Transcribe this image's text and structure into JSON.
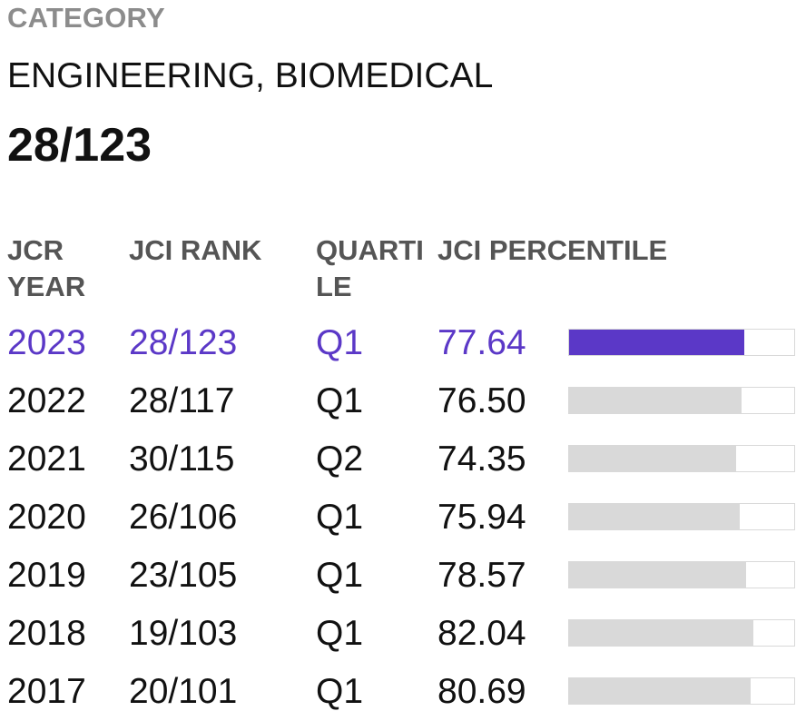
{
  "category": {
    "label": "CATEGORY",
    "name": "ENGINEERING, BIOMEDICAL",
    "rank": "28/123"
  },
  "table": {
    "headers": {
      "year": "JCR YEAR",
      "rank": "JCI RANK",
      "quartile": "QUARTILE",
      "percentile": "JCI PERCENTILE"
    },
    "rows": [
      {
        "year": "2023",
        "rank": "28/123",
        "quartile": "Q1",
        "percentile": "77.64",
        "bar_fraction": 0.7764,
        "current": true
      },
      {
        "year": "2022",
        "rank": "28/117",
        "quartile": "Q1",
        "percentile": "76.50",
        "bar_fraction": 0.765,
        "current": false
      },
      {
        "year": "2021",
        "rank": "30/115",
        "quartile": "Q2",
        "percentile": "74.35",
        "bar_fraction": 0.7435,
        "current": false
      },
      {
        "year": "2020",
        "rank": "26/106",
        "quartile": "Q1",
        "percentile": "75.94",
        "bar_fraction": 0.7594,
        "current": false
      },
      {
        "year": "2019",
        "rank": "23/105",
        "quartile": "Q1",
        "percentile": "78.57",
        "bar_fraction": 0.7857,
        "current": false
      },
      {
        "year": "2018",
        "rank": "19/103",
        "quartile": "Q1",
        "percentile": "82.04",
        "bar_fraction": 0.8204,
        "current": false
      },
      {
        "year": "2017",
        "rank": "20/101",
        "quartile": "Q1",
        "percentile": "80.69",
        "bar_fraction": 0.8069,
        "current": false
      }
    ]
  },
  "colors": {
    "highlight": "#5b38c7",
    "bar_track": "#d9d9d9",
    "header_text": "#555555",
    "label_text": "#8c8c8c"
  }
}
